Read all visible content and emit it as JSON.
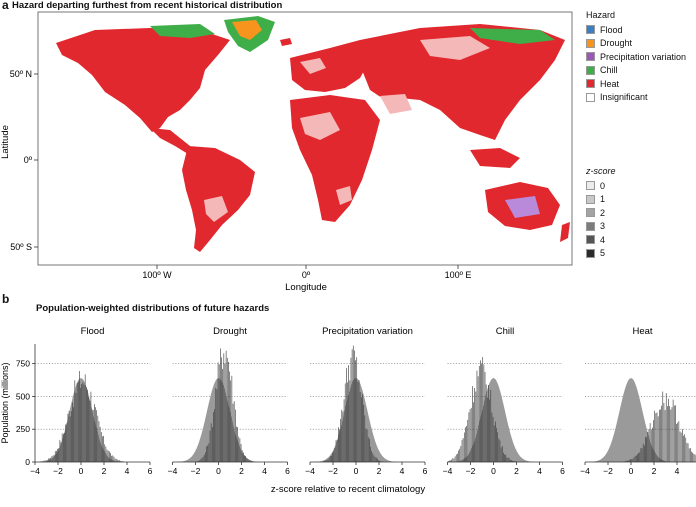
{
  "panel_a": {
    "letter": "a",
    "title": "Hazard departing furthest from recent historical distribution",
    "xlabel": "Longitude",
    "ylabel": "Latitude",
    "x_ticks": [
      "100º W",
      "0º",
      "100º E"
    ],
    "y_ticks": [
      "50º N",
      "0º",
      "50º S"
    ],
    "hazard_legend": {
      "title": "Hazard",
      "items": [
        {
          "label": "Flood",
          "color": "#3a7fc1"
        },
        {
          "label": "Drought",
          "color": "#f7941d"
        },
        {
          "label": "Precipitation variation",
          "color": "#9b59b6"
        },
        {
          "label": "Chill",
          "color": "#3fae49"
        },
        {
          "label": "Heat",
          "color": "#e0282e"
        },
        {
          "label": "Insignificant",
          "color": "#ffffff"
        }
      ]
    },
    "zscore_legend": {
      "title": "z-score",
      "items": [
        {
          "label": "0",
          "color": "#ebebeb"
        },
        {
          "label": "1",
          "color": "#c8c8c8"
        },
        {
          "label": "2",
          "color": "#a3a3a3"
        },
        {
          "label": "3",
          "color": "#7c7c7c"
        },
        {
          "label": "4",
          "color": "#555555"
        },
        {
          "label": "5",
          "color": "#2b2b2b"
        }
      ]
    }
  },
  "panel_b": {
    "letter": "b",
    "title": "Population-weighted distributions of future hazards",
    "xlabel": "z-score relative to recent climatology",
    "ylabel": "Population (millions)"
  },
  "chart_data": {
    "type": "bar",
    "x_ticks": [
      -4,
      -2,
      0,
      2,
      4,
      6
    ],
    "y_ticks": [
      0,
      250,
      500,
      750
    ],
    "xlim": [
      -4,
      6
    ],
    "ylim": [
      0,
      900
    ],
    "grid": "horizontal dotted",
    "panels": [
      {
        "title": "Flood",
        "reference_curve": {
          "mean": 0,
          "sd": 1,
          "peak": 640
        },
        "future_histogram": {
          "mean": 0.1,
          "sd": 1.15,
          "peak": 620
        }
      },
      {
        "title": "Drought",
        "reference_curve": {
          "mean": 0,
          "sd": 1,
          "peak": 640
        },
        "future_histogram": {
          "mean": 0.5,
          "sd": 0.75,
          "peak": 860
        }
      },
      {
        "title": "Precipitation variation",
        "reference_curve": {
          "mean": 0,
          "sd": 1,
          "peak": 640
        },
        "future_histogram": {
          "mean": -0.3,
          "sd": 0.8,
          "peak": 790
        }
      },
      {
        "title": "Chill",
        "reference_curve": {
          "mean": 0,
          "sd": 1,
          "peak": 640
        },
        "future_histogram": {
          "mean": -1.1,
          "sd": 0.95,
          "peak": 700
        }
      },
      {
        "title": "Heat",
        "reference_curve": {
          "mean": 0,
          "sd": 1,
          "peak": 640
        },
        "future_histogram": {
          "mean": 3.0,
          "sd": 1.2,
          "peak": 480
        }
      }
    ]
  }
}
